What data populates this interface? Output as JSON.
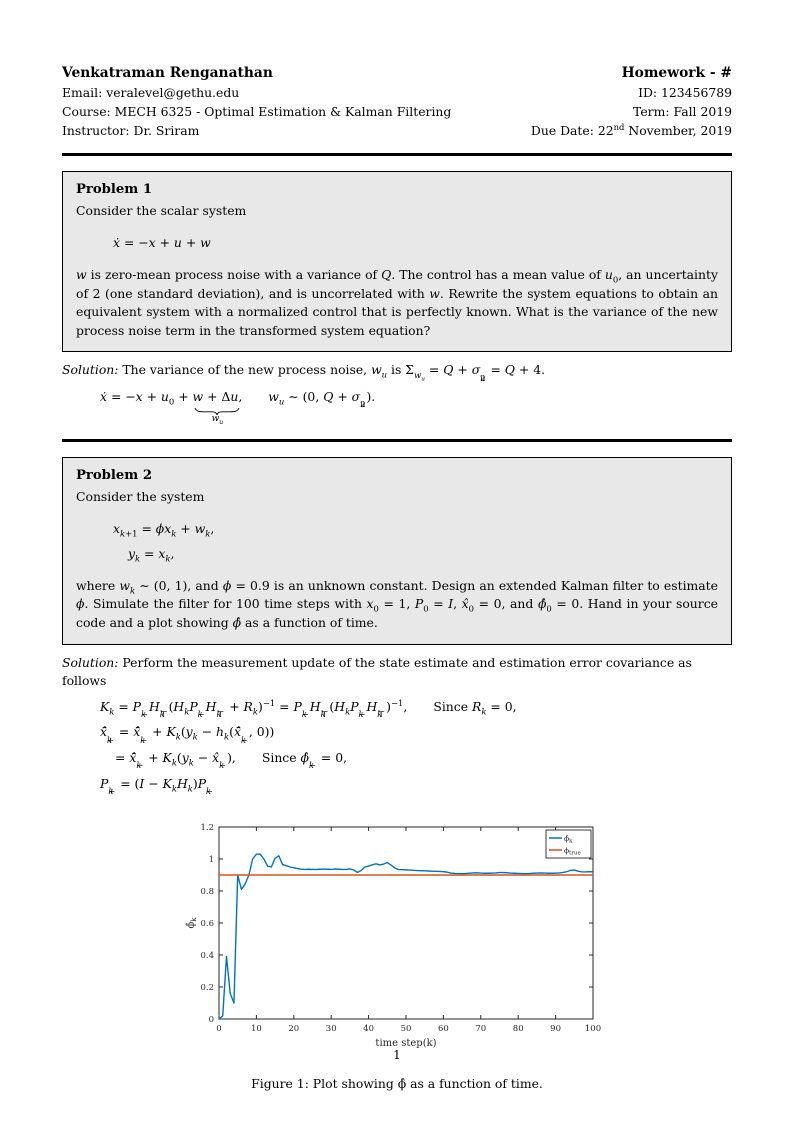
{
  "header": {
    "name": "Venkatraman Renganathan",
    "email": "Email: veralevel@gethu.edu",
    "course": "Course: MECH 6325 - Optimal Estimation & Kalman Filtering",
    "instructor": "Instructor: Dr. Sriram",
    "homework_title": "Homework - #",
    "id": "ID: 123456789",
    "term": "Term: Fall 2019",
    "due_html": "Due Date: 22<sup>nd</sup> November, 2019"
  },
  "problem1": {
    "title": "Problem 1",
    "intro": "Consider the scalar system",
    "equation_html": "<i>ẋ</i> = −<i>x</i> + <i>u</i> + <i>w</i>",
    "body_html": "<i>w</i> is zero-mean process noise with a variance of <i>Q</i>. The control has a mean value of <i>u</i><sub>0</sub>, an uncertainty of 2 (one standard deviation), and is uncorrelated with <i>w</i>. Rewrite the system equations to obtain an equivalent system with a normalized control that is perfectly known. What is the variance of the new process noise term in the transformed system equation?"
  },
  "solution1": {
    "label": "Solution:",
    "text_html": "The variance of the new process noise, <i>w</i><sub><i>u</i></sub> is Σ<sub><i>w</i><sub><i>u</i></sub></sub> = <i>Q</i> + <i>σ</i><span class='ss'><sup>2</sup><sub><i>u</i></sub></span> = <i>Q</i> + 4.",
    "eq_left_html": "<i>ẋ</i> = −<i>x</i> + <i>u</i><sub>0</sub> + ",
    "brace_top_html": "<i>w</i> + Δ<i>u</i>,",
    "brace_label_html": "<i>w</i><sub><i>u</i></sub>",
    "eq_right_html": "<i>w</i><sub><i>u</i></sub> ∼ (0, <i>Q</i> + <i>σ</i><span class='ss'><sup>2</sup><sub><i>u</i></sub></span>)."
  },
  "problem2": {
    "title": "Problem 2",
    "intro": "Consider the system",
    "eq1_html": "<i>x</i><sub><i>k</i>+1</sub> = <i>ϕx</i><sub><i>k</i></sub> + <i>w</i><sub><i>k</i></sub>,",
    "eq2_html": "<i>y</i><sub><i>k</i></sub> = <i>x</i><sub><i>k</i></sub>,",
    "body_html": "where <i>w</i><sub><i>k</i></sub> ∼ (0, 1), and <i>ϕ</i> = 0.9 is an unknown constant. Design an extended Kalman filter to estimate <i>ϕ</i>. Simulate the filter for 100 time steps with <i>x</i><sub>0</sub> = 1, <i>P</i><sub>0</sub> = <i>I</i>, <i>x̂</i><sub>0</sub> = 0, and <i>ϕ̂</i><sub>0</sub> = 0. Hand in your source code and a plot showing <i>ϕ̂</i> as a function of time."
  },
  "solution2": {
    "label": "Solution:",
    "text": "Perform the measurement update of the state estimate and estimation error covariance as follows",
    "lines_html": [
      "<i>K</i><sub><i>k</i></sub> = <i>P</i><span class='ss'><sup>−</sup><sub><i>k</i></sub></span><i>H</i><span class='ss'><sup>⊤</sup><sub><i>k</i></sub></span>(<i>H</i><sub><i>k</i></sub><i>P</i><span class='ss'><sup>−</sup><sub><i>k</i></sub></span><i>H</i><span class='ss'><sup>⊤</sup><sub><i>k</i></sub></span> + <i>R</i><sub><i>k</i></sub>)<sup>−1</sup> = <i>P</i><span class='ss'><sup>−</sup><sub><i>k</i></sub></span><i>H</i><span class='ss'><sup>⊤</sup><sub><i>k</i></sub></span>(<i>H</i><sub><i>k</i></sub><i>P</i><span class='ss'><sup>−</sup><sub><i>k</i></sub></span><i>H</i><span class='ss'><sup>⊤</sup><sub><i>k</i></sub></span>)<sup>−1</sup>,<span class='sp'></span>Since <i>R</i><sub><i>k</i></sub> = 0,",
      "<i>x̄̂</i><span class='ss'><sup>+</sup><sub><i>k</i></sub></span> = <i>x̄̂</i><span class='ss'><sup>−</sup><sub><i>k</i></sub></span> + <i>K</i><sub><i>k</i></sub>(<i>y</i><sub><i>k</i></sub> − <i>h</i><sub><i>k</i></sub>(<i>x̄̂</i><span class='ss'><sup>−</sup><sub><i>k</i></sub></span>, 0))",
      "= <i>x̄̂</i><span class='ss'><sup>−</sup><sub><i>k</i></sub></span> + <i>K</i><sub><i>k</i></sub>(<i>y</i><sub><i>k</i></sub> − <i>x̂</i><span class='ss'><sup>−</sup><sub><i>k</i></sub></span>),<span class='sp'></span>Since <i>ϕ̂</i><span class='ss'><sup>−</sup><sub><i>k</i></sub></span> = 0,",
      "<i>P</i><span class='ss'><sup>+</sup><sub><i>k</i></sub></span> = (<i>I</i> − <i>K</i><sub><i>k</i></sub><i>H</i><sub><i>k</i></sub>)<i>P</i><span class='ss'><sup>−</sup><sub><i>k</i></sub></span>"
    ]
  },
  "figure": {
    "caption": "Figure 1: Plot showing ϕ̂ as a function of time."
  },
  "page_number": "1",
  "chart_data": {
    "type": "line",
    "title": "",
    "xlabel": "time step(k)",
    "ylabel_base": "ϕ̂",
    "ylabel_sub": "k",
    "xlim": [
      0,
      100
    ],
    "ylim": [
      0,
      1.2
    ],
    "xticks": [
      0,
      10,
      20,
      30,
      40,
      50,
      60,
      70,
      80,
      90,
      100
    ],
    "yticks": [
      {
        "v": 0,
        "label": "0"
      },
      {
        "v": 0.2,
        "label": "0.2"
      },
      {
        "v": 0.4,
        "label": "0.4"
      },
      {
        "v": 0.6,
        "label": "0.6"
      },
      {
        "v": 0.8,
        "label": "0.8"
      },
      {
        "v": 1.0,
        "label": "1"
      },
      {
        "v": 1.2,
        "label": "1.2"
      }
    ],
    "grid": false,
    "legend_position": "top-right",
    "axis_color": "#262626",
    "series": [
      {
        "name_base": "ϕ̂",
        "name_sub": "k",
        "color": "#0072BD",
        "type": "line",
        "values": [
          0.0,
          0.02,
          0.39,
          0.16,
          0.1,
          0.9,
          0.81,
          0.845,
          0.9,
          1.0,
          1.03,
          1.03,
          1.0,
          0.955,
          0.95,
          1.005,
          1.02,
          0.965,
          0.958,
          0.95,
          0.945,
          0.94,
          0.936,
          0.935,
          0.936,
          0.935,
          0.935,
          0.936,
          0.937,
          0.936,
          0.935,
          0.937,
          0.936,
          0.935,
          0.935,
          0.938,
          0.932,
          0.916,
          0.928,
          0.95,
          0.956,
          0.964,
          0.97,
          0.963,
          0.968,
          0.978,
          0.962,
          0.944,
          0.934,
          0.933,
          0.932,
          0.931,
          0.929,
          0.928,
          0.927,
          0.926,
          0.925,
          0.924,
          0.923,
          0.922,
          0.921,
          0.918,
          0.912,
          0.91,
          0.909,
          0.908,
          0.909,
          0.911,
          0.913,
          0.914,
          0.912,
          0.911,
          0.911,
          0.912,
          0.913,
          0.915,
          0.915,
          0.914,
          0.912,
          0.911,
          0.91,
          0.909,
          0.908,
          0.909,
          0.911,
          0.912,
          0.913,
          0.912,
          0.911,
          0.911,
          0.912,
          0.913,
          0.916,
          0.921,
          0.929,
          0.931,
          0.924,
          0.92,
          0.919,
          0.921,
          0.92
        ]
      },
      {
        "name_base": "ϕ",
        "name_sub": "true",
        "color": "#D95319",
        "type": "hline",
        "value": 0.9
      }
    ]
  }
}
